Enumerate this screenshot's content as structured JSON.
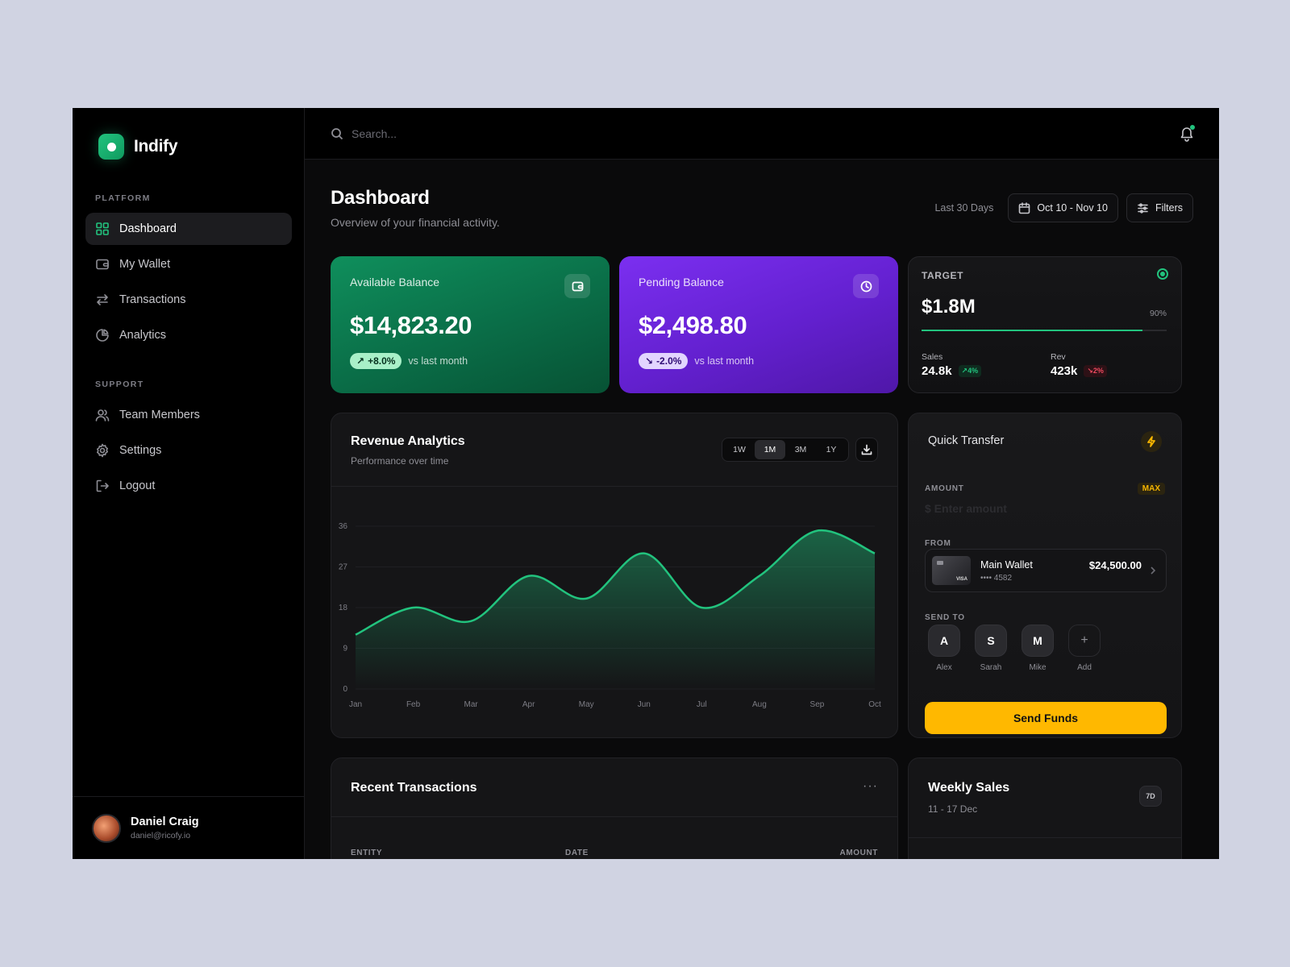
{
  "app": {
    "name": "Indify"
  },
  "sidebar": {
    "platform_heading": "PLATFORM",
    "platform_items": [
      {
        "label": "Dashboard",
        "icon": "grid-icon",
        "active": true
      },
      {
        "label": "My Wallet",
        "icon": "wallet-icon"
      },
      {
        "label": "Transactions",
        "icon": "arrows-icon"
      },
      {
        "label": "Analytics",
        "icon": "pie-chart-icon"
      }
    ],
    "support_heading": "SUPPORT",
    "support_items": [
      {
        "label": "Team Members",
        "icon": "users-icon"
      },
      {
        "label": "Settings",
        "icon": "gear-icon"
      },
      {
        "label": "Logout",
        "icon": "logout-icon"
      }
    ],
    "user": {
      "name": "Daniel Craig",
      "email": "daniel@ricofy.io"
    }
  },
  "topbar": {
    "search_placeholder": "Search..."
  },
  "header": {
    "title": "Dashboard",
    "subtitle": "Overview of your financial activity.",
    "range_label": "Last 30 Days",
    "date_range": "Oct 10 - Nov 10",
    "filters_label": "Filters"
  },
  "available": {
    "label": "Available Balance",
    "value": "$14,823.20",
    "delta": "+8.0%",
    "compare": "vs last month"
  },
  "pending": {
    "label": "Pending Balance",
    "value": "$2,498.80",
    "delta": "-2.0%",
    "compare": "vs last month"
  },
  "target": {
    "label": "TARGET",
    "value": "$1.8M",
    "percent_label": "90%",
    "progress": 0.9,
    "sales_label": "Sales",
    "sales_value": "24.8k",
    "sales_delta": "4%",
    "rev_label": "Rev",
    "rev_value": "423k",
    "rev_delta": "2%"
  },
  "revenue": {
    "title": "Revenue Analytics",
    "subtitle": "Performance over time",
    "ranges": [
      "1W",
      "1M",
      "3M",
      "1Y"
    ],
    "active_range": "1M"
  },
  "chart_data": {
    "type": "area",
    "categories": [
      "Jan",
      "Feb",
      "Mar",
      "Apr",
      "May",
      "Jun",
      "Jul",
      "Aug",
      "Sep",
      "Oct"
    ],
    "values": [
      12,
      18,
      15,
      25,
      20,
      30,
      18,
      25,
      35,
      30
    ],
    "yticks": [
      0,
      9,
      18,
      27,
      36
    ],
    "ylim": [
      0,
      36
    ],
    "color": "#22c37e"
  },
  "quick_transfer": {
    "title": "Quick Transfer",
    "amount_label": "AMOUNT",
    "max_label": "MAX",
    "amount_placeholder": "$  Enter amount",
    "from_label": "FROM",
    "wallet_name": "Main Wallet",
    "wallet_number": "•••• 4582",
    "wallet_balance": "$24,500.00",
    "card_brand": "VISA",
    "send_to_label": "SEND TO",
    "contacts": [
      {
        "initial": "A",
        "name": "Alex"
      },
      {
        "initial": "S",
        "name": "Sarah"
      },
      {
        "initial": "M",
        "name": "Mike"
      }
    ],
    "add_initial": "+",
    "add_label": "Add",
    "send_label": "Send Funds"
  },
  "recent": {
    "title": "Recent Transactions",
    "more": "···",
    "columns": [
      "ENTITY",
      "DATE",
      "AMOUNT"
    ]
  },
  "weekly": {
    "title": "Weekly Sales",
    "subtitle": "11 - 17 Dec",
    "badge": "7D"
  }
}
